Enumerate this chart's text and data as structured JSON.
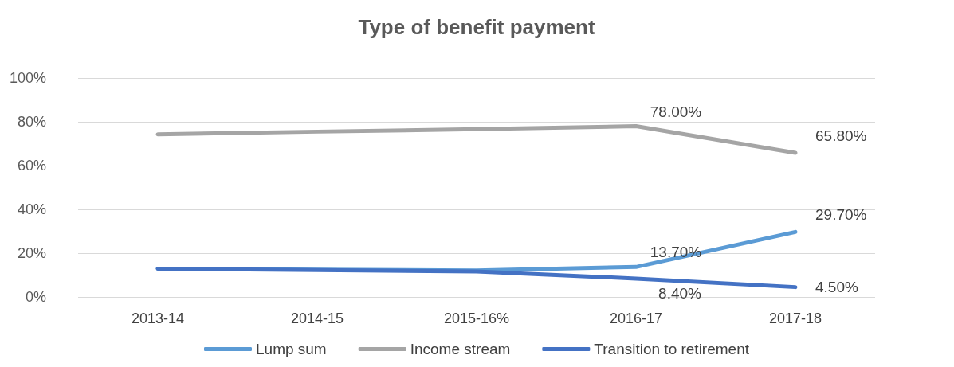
{
  "chart_data": {
    "type": "line",
    "title": "Type of benefit payment",
    "categories": [
      "2013-14",
      "2014-15",
      "2015-16%",
      "2016-17",
      "2017-18"
    ],
    "series": [
      {
        "name": "Lump sum",
        "color": "#5b9bd5",
        "values": [
          12.9,
          12.5,
          12.1,
          13.7,
          29.7
        ],
        "value_labels": [
          null,
          null,
          null,
          "13.70%",
          "29.70%"
        ]
      },
      {
        "name": "Income stream",
        "color": "#a5a5a5",
        "values": [
          74.3,
          75.5,
          76.6,
          78,
          65.8
        ],
        "value_labels": [
          null,
          null,
          null,
          "78.00%",
          "65.80%"
        ]
      },
      {
        "name": "Transition to retirement",
        "color": "#4472c4",
        "values": [
          12.9,
          12.3,
          11.6,
          8.4,
          4.5
        ],
        "value_labels": [
          null,
          null,
          null,
          "8.40%",
          "4.50%"
        ]
      }
    ],
    "ylim": [
      0,
      100
    ],
    "yticks": [
      {
        "value": 0,
        "label": "0%"
      },
      {
        "value": 20,
        "label": "20%"
      },
      {
        "value": 40,
        "label": "40%"
      },
      {
        "value": 60,
        "label": "60%"
      },
      {
        "value": 80,
        "label": "80%"
      },
      {
        "value": 100,
        "label": "100%"
      }
    ],
    "grid": "y",
    "legend": "bottom",
    "marker": "none",
    "line_style": "solid"
  }
}
